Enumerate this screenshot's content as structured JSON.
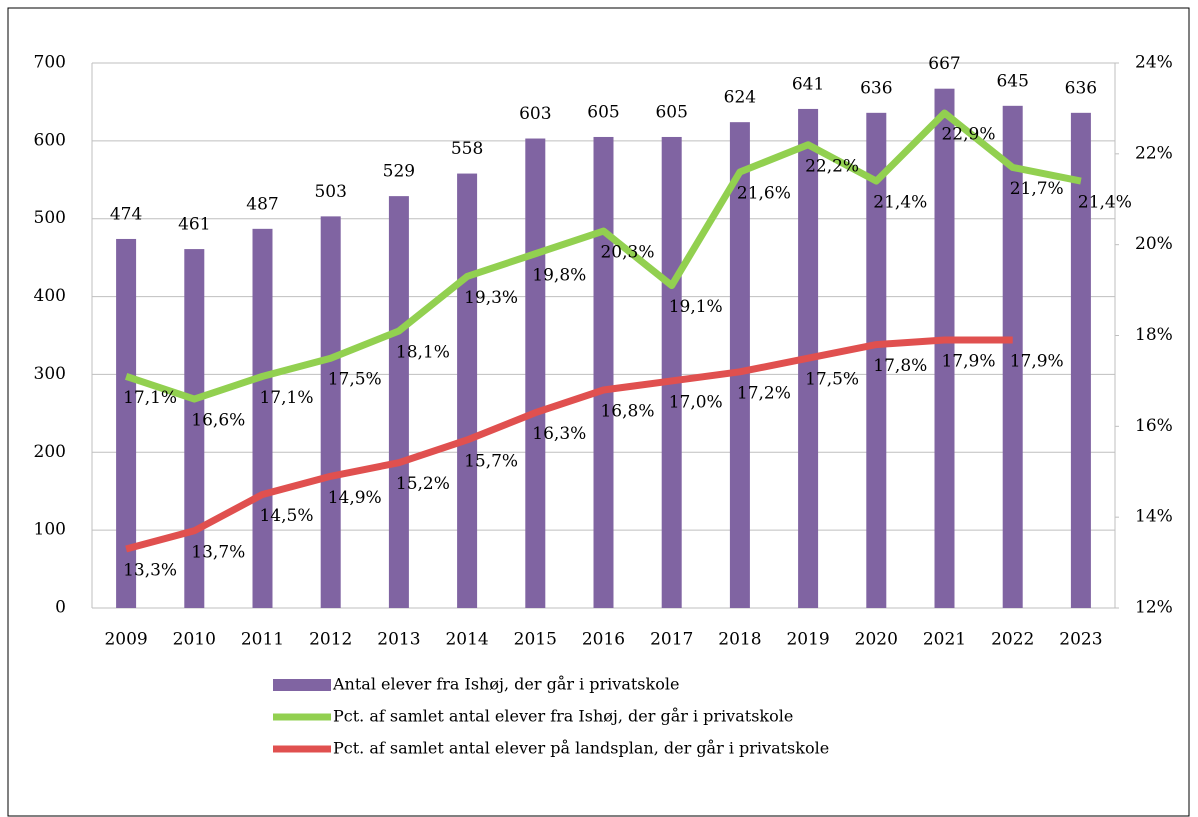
{
  "chart_data": {
    "type": "bar_line",
    "categories": [
      "2009",
      "2010",
      "2011",
      "2012",
      "2013",
      "2014",
      "2015",
      "2016",
      "2017",
      "2018",
      "2019",
      "2020",
      "2021",
      "2022",
      "2023"
    ],
    "series": [
      {
        "name": "Antal elever fra Ishøj, der går i privatskole",
        "type": "bar",
        "color": "#8064a2",
        "values": [
          474,
          461,
          487,
          503,
          529,
          558,
          603,
          605,
          605,
          624,
          641,
          636,
          667,
          645,
          636
        ]
      },
      {
        "name": "Pct. af samlet antal elever fra Ishøj, der går i privatskole",
        "type": "line",
        "axis": "y2",
        "color": "#92d050",
        "values": [
          17.1,
          16.6,
          17.1,
          17.5,
          18.1,
          19.3,
          19.8,
          20.3,
          19.1,
          21.6,
          22.2,
          21.4,
          22.9,
          21.7,
          21.4
        ],
        "value_labels": [
          "17,1%",
          "16,6%",
          "17,1%",
          "17,5%",
          "18,1%",
          "19,3%",
          "19,8%",
          "20,3%",
          "19,1%",
          "21,6%",
          "22,2%",
          "21,4%",
          "22,9%",
          "21,7%",
          "21,4%"
        ]
      },
      {
        "name": "Pct. af samlet antal elever på landsplan, der går i privatskole",
        "type": "line",
        "axis": "y2",
        "color": "#e0504f",
        "values": [
          13.3,
          13.7,
          14.5,
          14.9,
          15.2,
          15.7,
          16.3,
          16.8,
          17.0,
          17.2,
          17.5,
          17.8,
          17.9,
          17.9,
          null
        ],
        "value_labels": [
          "13,3%",
          "13,7%",
          "14,5%",
          "14,9%",
          "15,2%",
          "15,7%",
          "16,3%",
          "16,8%",
          "17,0%",
          "17,2%",
          "17,5%",
          "17,8%",
          "17,9%",
          "17,9%",
          null
        ]
      }
    ],
    "ylim": [
      0,
      700
    ],
    "yticks": [
      0,
      100,
      200,
      300,
      400,
      500,
      600,
      700
    ],
    "y2lim": [
      12,
      24
    ],
    "y2ticks": [
      {
        "value": 12,
        "label": "12%"
      },
      {
        "value": 14,
        "label": "14%"
      },
      {
        "value": 16,
        "label": "16%"
      },
      {
        "value": 18,
        "label": "18%"
      },
      {
        "value": 20,
        "label": "20%"
      },
      {
        "value": 22,
        "label": "22%"
      },
      {
        "value": 24,
        "label": "24%"
      }
    ],
    "grid": true,
    "legend": "bottom"
  }
}
